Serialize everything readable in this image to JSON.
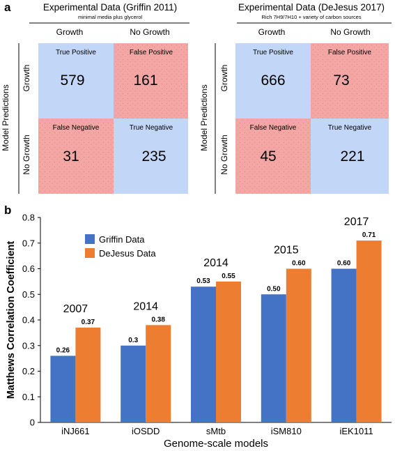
{
  "panel_a": {
    "label": "a",
    "row_axis_title": "Model Predictions",
    "matrices": [
      {
        "title": "Experimental Data (Griffin 2011)",
        "subtitle": "minimal media plus glycerol",
        "col_labels": [
          "Growth",
          "No Growth"
        ],
        "row_labels": [
          "Growth",
          "No Growth"
        ],
        "cells": [
          {
            "label": "True Positive",
            "value": "579",
            "color": "#c2d6f7"
          },
          {
            "label": "False Positive",
            "value": "161",
            "color": "#f2a7a5"
          },
          {
            "label": "False Negative",
            "value": "31",
            "color": "#f2a7a5"
          },
          {
            "label": "True Negative",
            "value": "235",
            "color": "#c2d6f7"
          }
        ]
      },
      {
        "title": "Experimental Data (DeJesus 2017)",
        "subtitle": "Rich 7H9/7H10 + variety of carbon sources",
        "col_labels": [
          "Growth",
          "No Growth"
        ],
        "row_labels": [
          "Growth",
          "No Growth"
        ],
        "cells": [
          {
            "label": "True Positive",
            "value": "666",
            "color": "#c2d6f7"
          },
          {
            "label": "False Positive",
            "value": "73",
            "color": "#f2a7a5"
          },
          {
            "label": "False Negative",
            "value": "45",
            "color": "#f2a7a5"
          },
          {
            "label": "True Negative",
            "value": "221",
            "color": "#c2d6f7"
          }
        ]
      }
    ]
  },
  "panel_b": {
    "label": "b"
  },
  "chart_data": [
    {
      "type": "bar",
      "categories": [
        "iNJ661",
        "iOSDD",
        "sMtb",
        "iSM810",
        "iEK1011"
      ],
      "series": [
        {
          "name": "Griffin Data",
          "values": [
            0.26,
            0.3,
            0.53,
            0.5,
            0.6
          ],
          "labels": [
            "0.26",
            "0.3",
            "0.53",
            "0.50",
            "0.60"
          ],
          "color": "#4472c4"
        },
        {
          "name": "DeJesus Data",
          "values": [
            0.37,
            0.38,
            0.55,
            0.6,
            0.71
          ],
          "labels": [
            "0.37",
            "0.38",
            "0.55",
            "0.60",
            "0.71"
          ],
          "color": "#ed7d31"
        }
      ],
      "group_annotations": [
        "2007",
        "2014",
        "2014",
        "2015",
        "2017"
      ],
      "xlabel": "Genome-scale models",
      "ylabel": "Matthews Correlation Coefficient",
      "ylim": [
        0,
        0.8
      ],
      "yticks": [
        "0",
        "0.1",
        "0.2",
        "0.3",
        "0.4",
        "0.5",
        "0.6",
        "0.7",
        "0.8"
      ],
      "grid": false,
      "legend_position": "top-left"
    }
  ]
}
